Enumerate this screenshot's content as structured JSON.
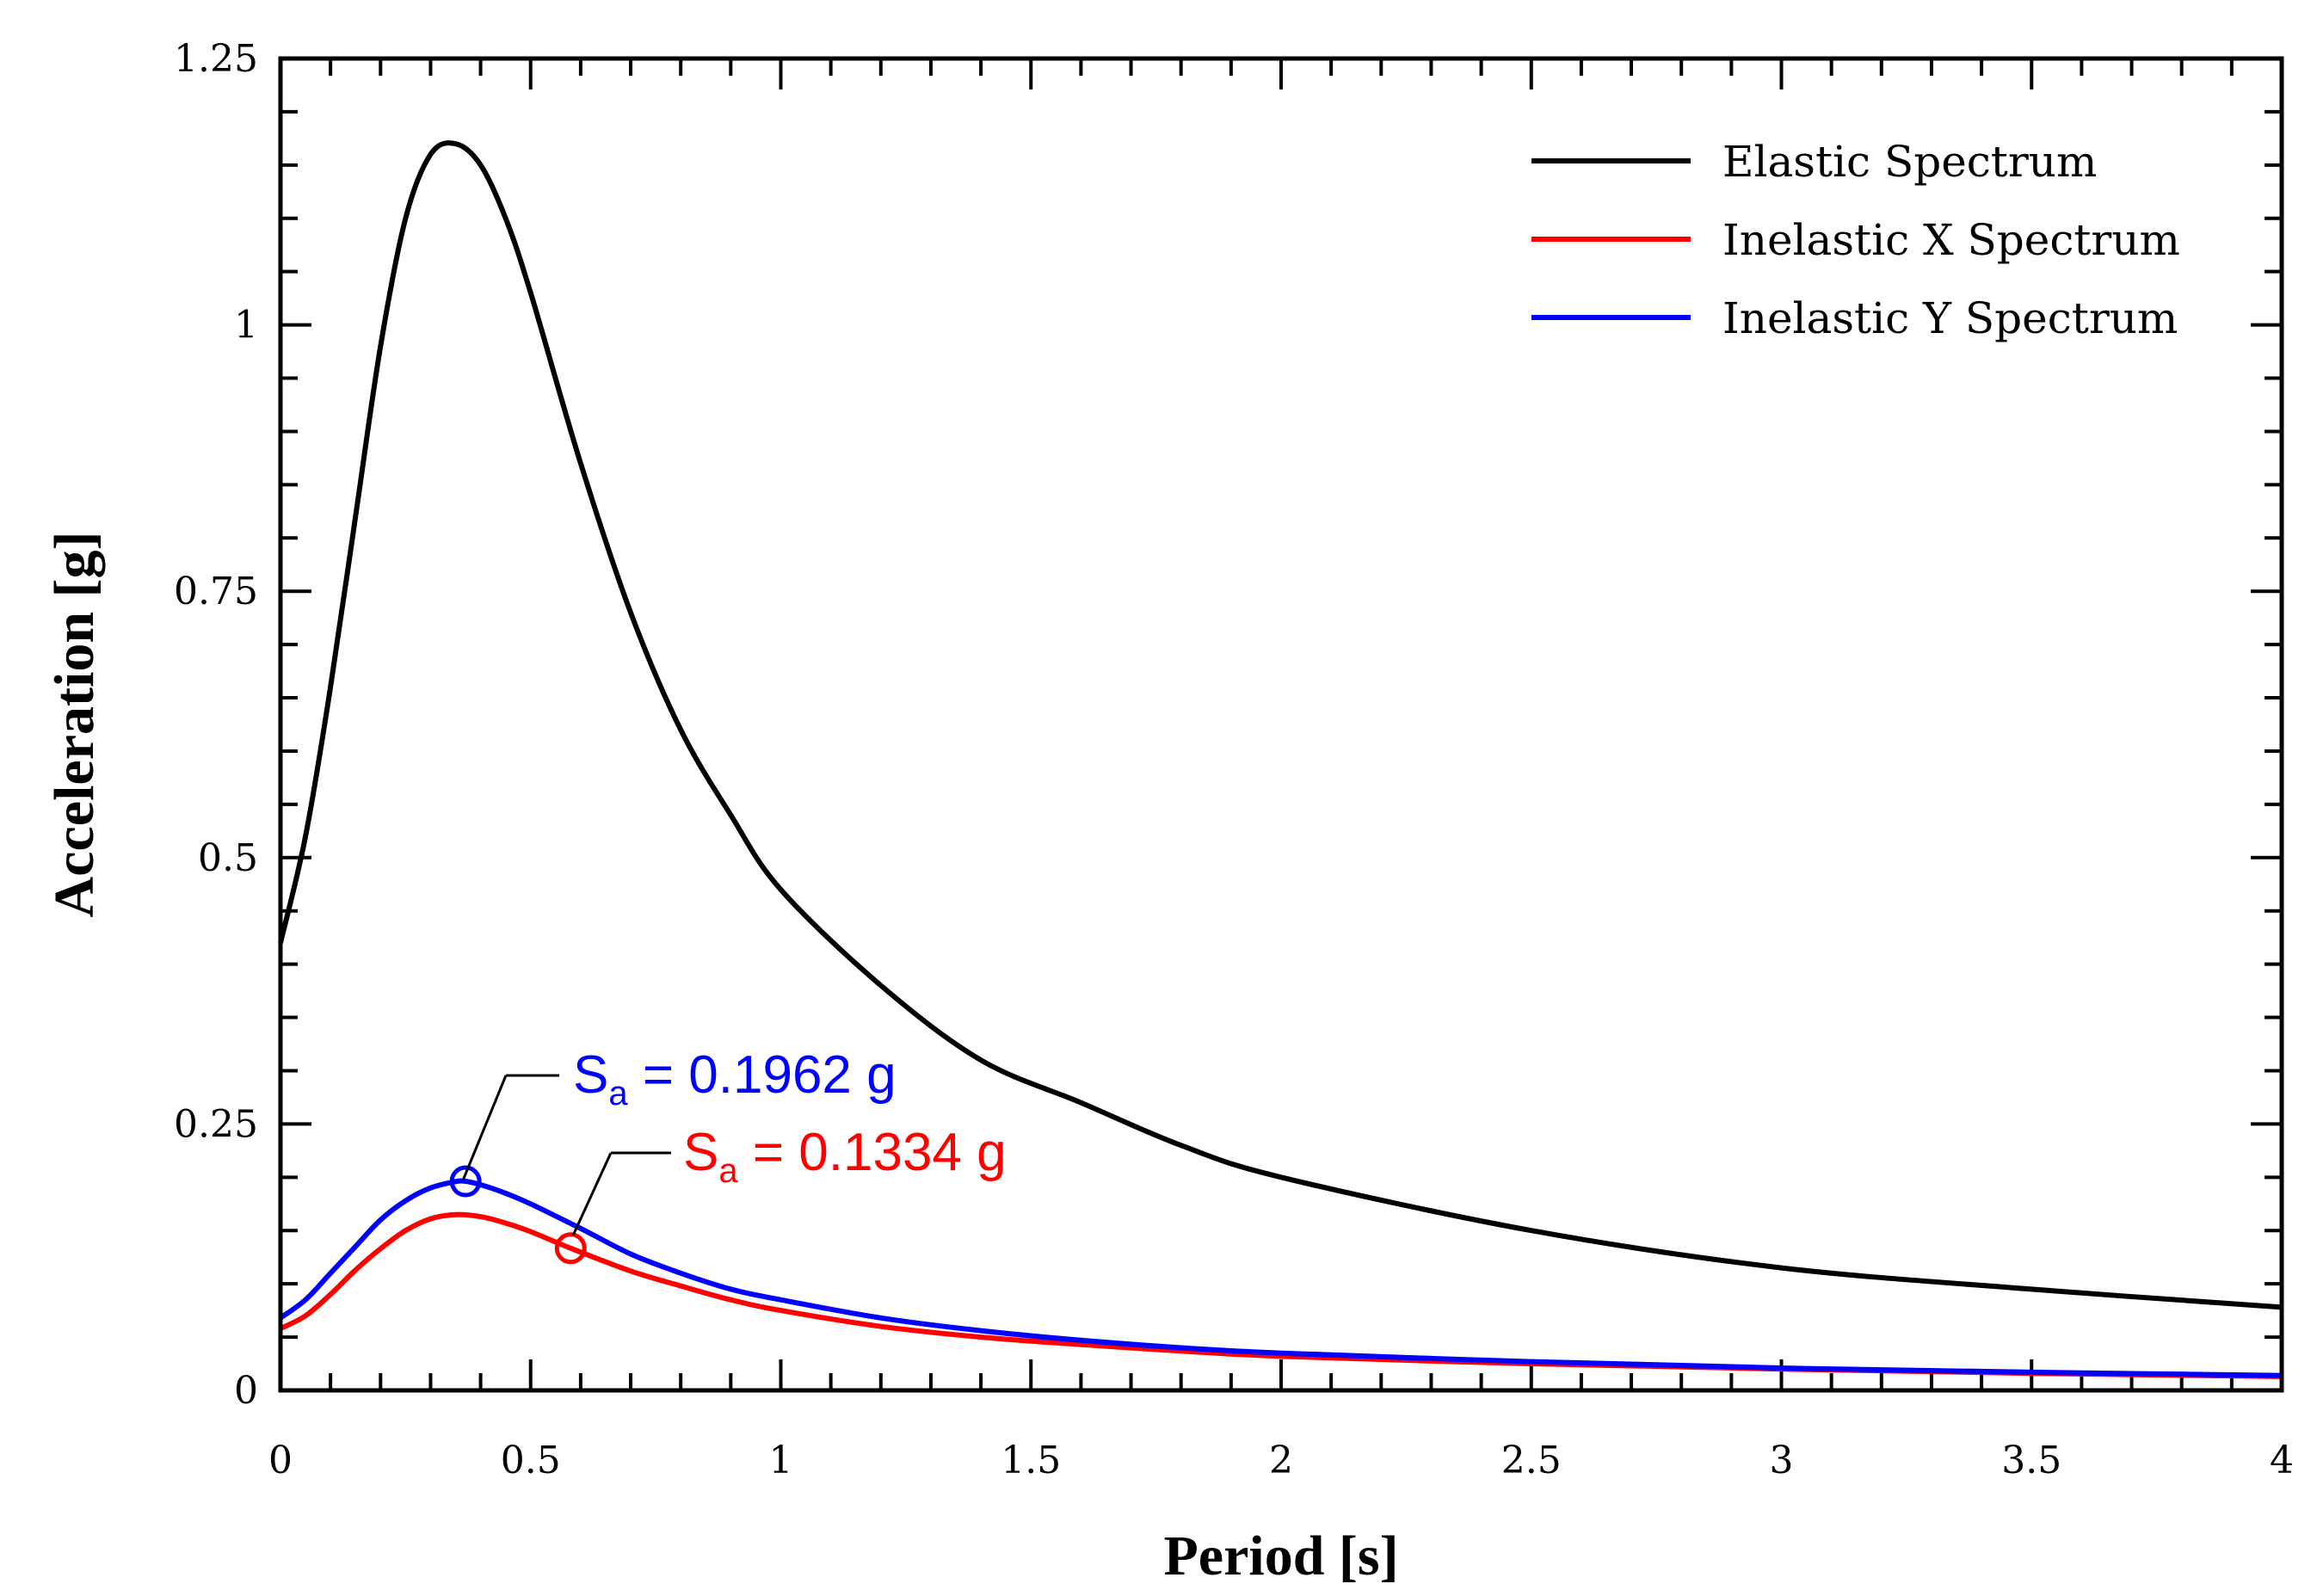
{
  "chart_data": {
    "type": "line",
    "title": "",
    "xlabel": "Period [s]",
    "ylabel": "Acceleration [g]",
    "xlim": [
      0,
      4
    ],
    "ylim": [
      0,
      1.25
    ],
    "x_ticks": [
      0,
      0.5,
      1,
      1.5,
      2,
      2.5,
      3,
      3.5,
      4
    ],
    "x_tick_labels": [
      "0",
      "0.5",
      "1",
      "1.5",
      "2",
      "2.5",
      "3",
      "3.5",
      "4"
    ],
    "y_ticks": [
      0,
      0.25,
      0.5,
      0.75,
      1,
      1.25
    ],
    "y_tick_labels": [
      "0",
      "0.25",
      "0.5",
      "0.75",
      "1",
      "1.25"
    ],
    "grid": false,
    "legend_position": "top-right",
    "series": [
      {
        "name": "Elastic Spectrum",
        "color": "#000000",
        "x": [
          0,
          0.05,
          0.1,
          0.15,
          0.2,
          0.25,
          0.3,
          0.35,
          0.4,
          0.45,
          0.5,
          0.6,
          0.7,
          0.8,
          0.9,
          1.0,
          1.2,
          1.4,
          1.6,
          1.8,
          2.0,
          2.5,
          3.0,
          3.5,
          4.0
        ],
        "y": [
          0.42,
          0.52,
          0.66,
          0.82,
          0.98,
          1.1,
          1.16,
          1.17,
          1.15,
          1.1,
          1.03,
          0.87,
          0.73,
          0.62,
          0.54,
          0.47,
          0.38,
          0.31,
          0.27,
          0.23,
          0.2,
          0.15,
          0.115,
          0.095,
          0.078
        ]
      },
      {
        "name": "Inelastic X Spectrum",
        "color": "#ff0000",
        "x": [
          0,
          0.05,
          0.1,
          0.15,
          0.2,
          0.25,
          0.3,
          0.35,
          0.4,
          0.45,
          0.5,
          0.58,
          0.7,
          0.8,
          0.9,
          1.0,
          1.2,
          1.4,
          1.6,
          1.8,
          2.0,
          2.5,
          3.0,
          3.5,
          4.0
        ],
        "y": [
          0.058,
          0.07,
          0.09,
          0.113,
          0.133,
          0.15,
          0.161,
          0.165,
          0.163,
          0.157,
          0.149,
          0.1334,
          0.112,
          0.098,
          0.085,
          0.075,
          0.06,
          0.05,
          0.043,
          0.037,
          0.032,
          0.025,
          0.02,
          0.016,
          0.013
        ]
      },
      {
        "name": "Inelastic Y Spectrum",
        "color": "#0000ff",
        "x": [
          0,
          0.05,
          0.1,
          0.15,
          0.2,
          0.25,
          0.3,
          0.35,
          0.37,
          0.4,
          0.45,
          0.5,
          0.6,
          0.7,
          0.8,
          0.9,
          1.0,
          1.2,
          1.4,
          1.6,
          1.8,
          2.0,
          2.5,
          3.0,
          3.5,
          4.0
        ],
        "y": [
          0.068,
          0.085,
          0.11,
          0.135,
          0.16,
          0.178,
          0.19,
          0.196,
          0.1962,
          0.193,
          0.185,
          0.175,
          0.152,
          0.128,
          0.11,
          0.095,
          0.085,
          0.068,
          0.056,
          0.047,
          0.04,
          0.035,
          0.027,
          0.021,
          0.017,
          0.014
        ]
      }
    ],
    "annotations": [
      {
        "base": "S",
        "sub": "a",
        "rest": " = 0.1962 g",
        "color": "#0000ff",
        "x": 0.37,
        "y": 0.1962
      },
      {
        "base": "S",
        "sub": "a",
        "rest": " = 0.1334 g",
        "color": "#ff0000",
        "x": 0.58,
        "y": 0.1334
      }
    ]
  }
}
